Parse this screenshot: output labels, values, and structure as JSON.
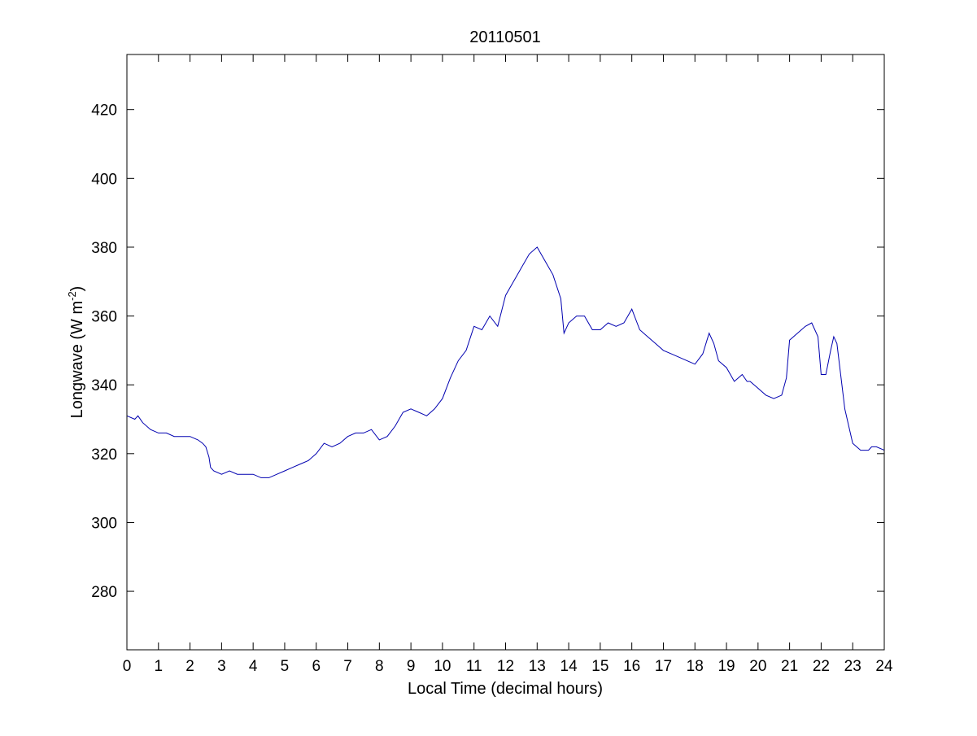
{
  "chart_data": {
    "type": "line",
    "title": "20110501",
    "xlabel": "Local Time (decimal hours)",
    "ylabel_main": "Longwave (W m",
    "ylabel_sup": "-2",
    "ylabel_close": ")",
    "xlim": [
      0,
      24
    ],
    "ylim": [
      263,
      436
    ],
    "xticks": [
      "0",
      "1",
      "2",
      "3",
      "4",
      "5",
      "6",
      "7",
      "8",
      "9",
      "10",
      "11",
      "12",
      "13",
      "14",
      "15",
      "16",
      "17",
      "18",
      "19",
      "20",
      "21",
      "22",
      "23",
      "24"
    ],
    "yticks": [
      "280",
      "300",
      "320",
      "340",
      "360",
      "380",
      "400",
      "420"
    ],
    "grid": false,
    "line_color": "#0000b0",
    "series": [
      {
        "x": [
          0.0,
          0.25,
          0.35,
          0.5,
          0.75,
          1.0,
          1.25,
          1.5,
          1.75,
          2.0,
          2.25,
          2.4,
          2.5,
          2.6,
          2.65,
          2.75,
          3.0,
          3.25,
          3.5,
          3.75,
          4.0,
          4.25,
          4.5,
          4.75,
          5.0,
          5.25,
          5.5,
          5.75,
          6.0,
          6.25,
          6.5,
          6.75,
          7.0,
          7.25,
          7.5,
          7.75,
          8.0,
          8.25,
          8.5,
          8.75,
          9.0,
          9.25,
          9.5,
          9.75,
          10.0,
          10.25,
          10.5,
          10.75,
          11.0,
          11.25,
          11.5,
          11.75,
          12.0,
          12.25,
          12.5,
          12.75,
          13.0,
          13.25,
          13.5,
          13.75,
          13.85,
          14.0,
          14.25,
          14.5,
          14.75,
          15.0,
          15.25,
          15.5,
          15.75,
          16.0,
          16.25,
          16.5,
          16.75,
          17.0,
          17.25,
          17.5,
          17.75,
          18.0,
          18.25,
          18.45,
          18.6,
          18.75,
          19.0,
          19.25,
          19.5,
          19.65,
          19.75,
          20.0,
          20.25,
          20.5,
          20.75,
          20.9,
          21.0,
          21.25,
          21.5,
          21.7,
          21.9,
          22.0,
          22.15,
          22.3,
          22.4,
          22.5,
          22.75,
          23.0,
          23.25,
          23.5,
          23.6,
          23.75,
          24.0
        ],
        "values": [
          331,
          330,
          331,
          329,
          327,
          326,
          326,
          325,
          325,
          325,
          324,
          323,
          322,
          319,
          316,
          315,
          314,
          315,
          314,
          314,
          314,
          313,
          313,
          314,
          315,
          316,
          317,
          318,
          320,
          323,
          322,
          323,
          325,
          326,
          326,
          327,
          324,
          325,
          328,
          332,
          333,
          332,
          331,
          333,
          336,
          342,
          347,
          350,
          357,
          356,
          360,
          357,
          366,
          370,
          374,
          378,
          380,
          376,
          372,
          365,
          355,
          358,
          360,
          360,
          356,
          356,
          358,
          357,
          358,
          362,
          356,
          354,
          352,
          350,
          349,
          348,
          347,
          346,
          349,
          355,
          352,
          347,
          345,
          341,
          343,
          341,
          341,
          339,
          337,
          336,
          337,
          342,
          353,
          355,
          357,
          358,
          354,
          343,
          343,
          350,
          354,
          352,
          333,
          323,
          321,
          321,
          322,
          322,
          321
        ]
      }
    ]
  }
}
